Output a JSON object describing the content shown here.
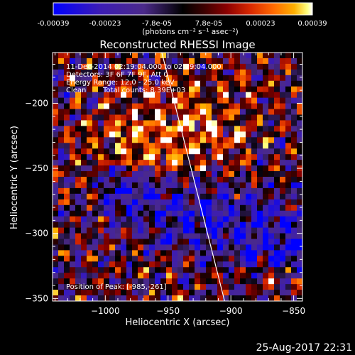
{
  "colorbar": {
    "tick_labels": [
      "-0.00039",
      "-0.00023",
      "-7.8e-05",
      "7.8e-05",
      "0.00023",
      "0.00039"
    ],
    "unit_label": "(photons cm⁻² s⁻¹ asec⁻²)",
    "colors": [
      "#0000ff",
      "#3c1cb4",
      "#4b2a8a",
      "#000000",
      "#3a0000",
      "#8b0000",
      "#d82800",
      "#ff6a00",
      "#ffb000",
      "#ffff80",
      "#ffffff"
    ]
  },
  "annotations": {
    "time_range": "11-Dec-2014 02:19:04.000 to 02:29:04.000",
    "detectors": "Detectors: 3F 6F 7F 9F, Att 0",
    "energy": "Energy Range: 12.0 - 25.0 keV",
    "method": "Clean",
    "total_counts": "Total counts: 8.39E+03",
    "position": "Position of Peak: [-985,-261]"
  },
  "timestamp": "25-Aug-2017 22:31",
  "chart_data": {
    "type": "heatmap",
    "title": "Reconstructed RHESSI Image",
    "xlabel": "Heliocentric X (arcsec)",
    "ylabel": "Heliocentric Y (arcsec)",
    "xlim": [
      -1042,
      -843
    ],
    "ylim": [
      -352,
      -161
    ],
    "x_ticks": [
      -1000,
      -950,
      -900,
      -850
    ],
    "y_ticks": [
      -200,
      -250,
      -300,
      -350
    ],
    "x_tick_labels": [
      "−1000",
      "−950",
      "−900",
      "−850"
    ],
    "y_tick_labels": [
      "−200",
      "−250",
      "−300",
      "−350"
    ],
    "color_range": [
      -0.00039,
      0.00039
    ],
    "limb_line": {
      "x": [
        -955,
        -905
      ],
      "y": [
        -161,
        -352
      ]
    },
    "peak": {
      "x": -985,
      "y": -261
    }
  }
}
